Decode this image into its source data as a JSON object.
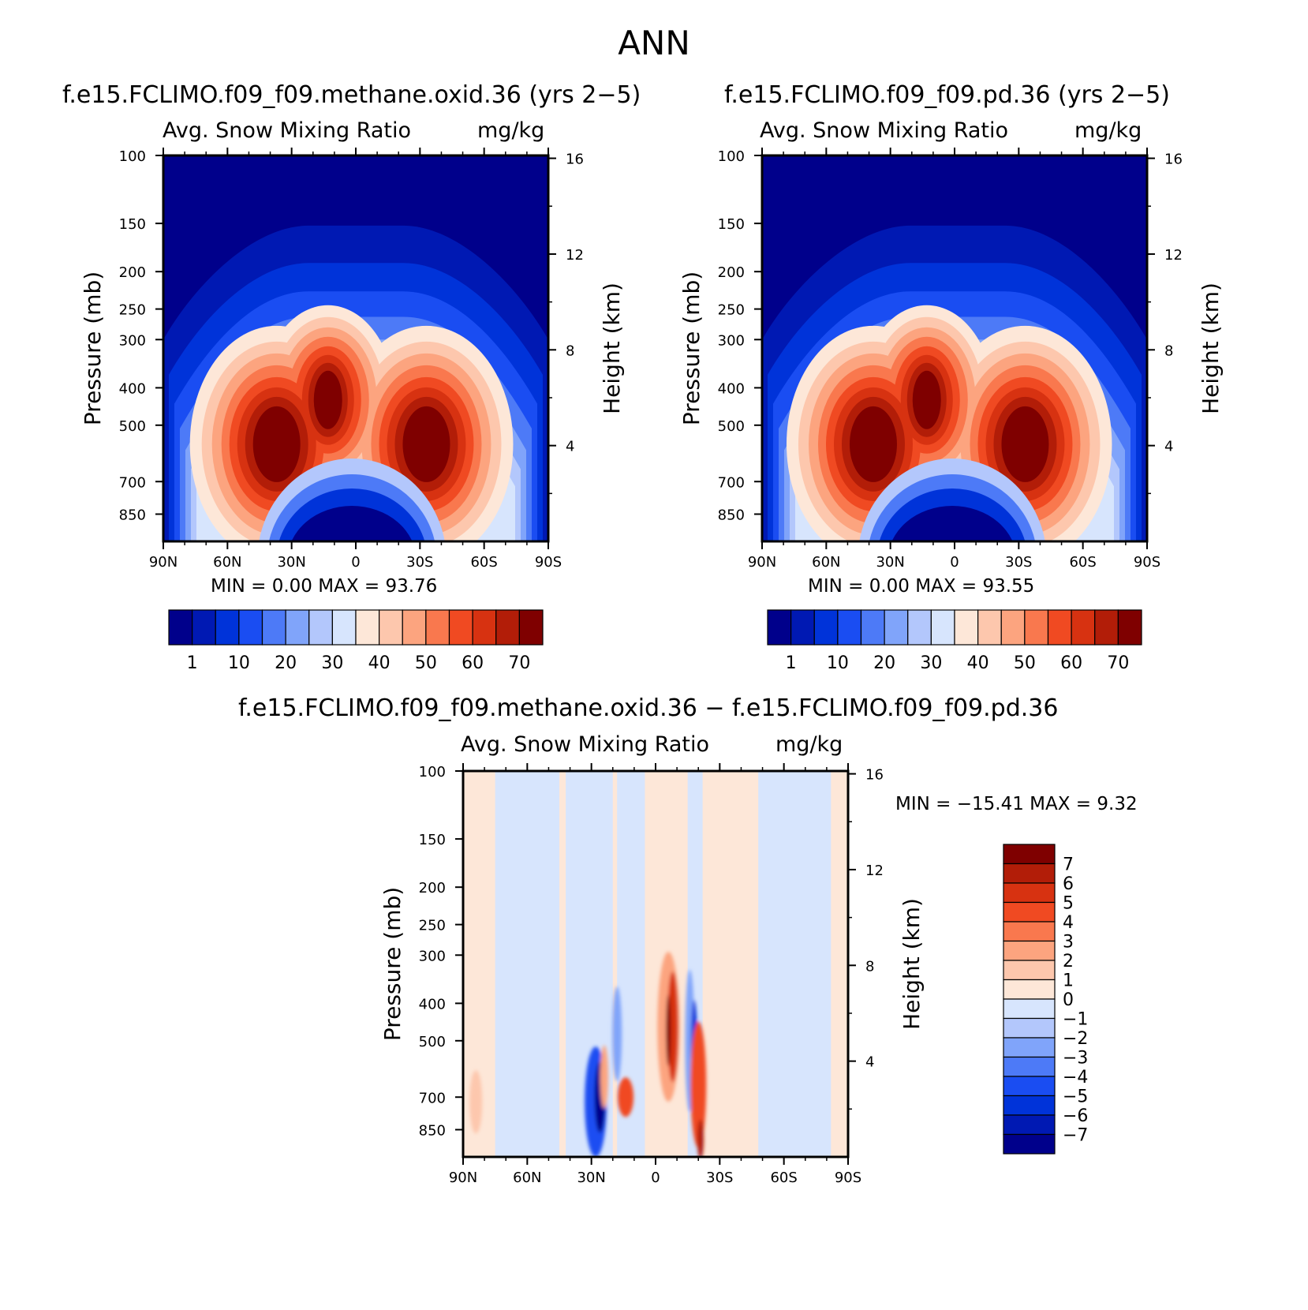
{
  "main_title": "ANN",
  "panels": [
    {
      "case_title": "f.e15.FCLIMO.f09_f09.methane.oxid.36 (yrs 2−5)",
      "var_name": "Avg. Snow Mixing Ratio",
      "units": "mg/kg",
      "minmax": "MIN =    0.00   MAX =   93.76"
    },
    {
      "case_title": "f.e15.FCLIMO.f09_f09.pd.36 (yrs 2−5)",
      "var_name": "Avg. Snow Mixing Ratio",
      "units": "mg/kg",
      "minmax": "MIN =    0.00   MAX =   93.55"
    },
    {
      "case_title": "f.e15.FCLIMO.f09_f09.methane.oxid.36 − f.e15.FCLIMO.f09_f09.pd.36",
      "var_name": "Avg. Snow Mixing Ratio",
      "units": "mg/kg",
      "minmax": "MIN = −15.41   MAX =    9.32"
    }
  ],
  "chart_data": [
    {
      "type": "contour",
      "name": "methane.oxid.36",
      "x_ticks": [
        "90N",
        "60N",
        "30N",
        "0",
        "30S",
        "60S",
        "90S"
      ],
      "x_range_lat": [
        90,
        -90
      ],
      "ylabel": "Pressure (mb)",
      "y_ticks": [
        100,
        150,
        200,
        250,
        300,
        400,
        500,
        700,
        850
      ],
      "y_range": [
        100,
        1000
      ],
      "y_scale": "log",
      "y2label": "Height (km)",
      "y2_ticks": [
        16,
        12,
        8,
        4
      ],
      "min": 0.0,
      "max": 93.76,
      "colorbar_labels": [
        "1",
        "10",
        "20",
        "30",
        "40",
        "50",
        "60",
        "70"
      ],
      "colorbar_orientation": "horizontal",
      "features": [
        {
          "desc": "NH maximum",
          "lat": 35,
          "p": 560,
          "value": ">70"
        },
        {
          "desc": "SH maximum",
          "lat": -35,
          "p": 560,
          "value": ">70"
        },
        {
          "desc": "upper tropical maximum",
          "lat": 15,
          "p": 420,
          "value": ">70"
        }
      ]
    },
    {
      "type": "contour",
      "name": "pd.36",
      "x_ticks": [
        "90N",
        "60N",
        "30N",
        "0",
        "30S",
        "60S",
        "90S"
      ],
      "x_range_lat": [
        90,
        -90
      ],
      "ylabel": "Pressure (mb)",
      "y_ticks": [
        100,
        150,
        200,
        250,
        300,
        400,
        500,
        700,
        850
      ],
      "y_range": [
        100,
        1000
      ],
      "y_scale": "log",
      "y2label": "Height (km)",
      "y2_ticks": [
        16,
        12,
        8,
        4
      ],
      "min": 0.0,
      "max": 93.55,
      "colorbar_labels": [
        "1",
        "10",
        "20",
        "30",
        "40",
        "50",
        "60",
        "70"
      ],
      "colorbar_orientation": "horizontal",
      "features": [
        {
          "desc": "NH maximum",
          "lat": 38,
          "p": 560,
          "value": ">70"
        },
        {
          "desc": "SH maximum",
          "lat": -35,
          "p": 560,
          "value": ">70"
        },
        {
          "desc": "upper tropical maximum",
          "lat": 18,
          "p": 430,
          "value": ">70"
        }
      ]
    },
    {
      "type": "contour",
      "name": "difference",
      "x_ticks": [
        "90N",
        "60N",
        "30N",
        "0",
        "30S",
        "60S",
        "90S"
      ],
      "x_range_lat": [
        90,
        -90
      ],
      "ylabel": "Pressure (mb)",
      "y_ticks": [
        100,
        150,
        200,
        250,
        300,
        400,
        500,
        700,
        850
      ],
      "y_range": [
        100,
        1000
      ],
      "y_scale": "log",
      "y2label": "Height (km)",
      "y2_ticks": [
        16,
        12,
        8,
        4
      ],
      "min": -15.41,
      "max": 9.32,
      "colorbar_labels": [
        "7",
        "6",
        "5",
        "4",
        "3",
        "2",
        "1",
        "0",
        "−1",
        "−2",
        "−3",
        "−4",
        "−5",
        "−6",
        "−7"
      ],
      "colorbar_orientation": "vertical"
    }
  ],
  "palettes": {
    "abs": [
      "#00008b",
      "#0019b3",
      "#0033d9",
      "#1a4df2",
      "#4d7af7",
      "#80a4fa",
      "#b3c7fc",
      "#d7e5fd",
      "#fde7d8",
      "#fdc7ad",
      "#fca47f",
      "#f9784e",
      "#f04a22",
      "#d73211",
      "#b21d08",
      "#7f0000"
    ],
    "diff": [
      "#00008b",
      "#0019b3",
      "#0033d9",
      "#1a4df2",
      "#4d7af7",
      "#80a4fa",
      "#b3c7fc",
      "#d7e5fd",
      "#fde7d8",
      "#fdc7ad",
      "#fca47f",
      "#f9784e",
      "#f04a22",
      "#d73211",
      "#b21d08",
      "#7f0000"
    ]
  }
}
